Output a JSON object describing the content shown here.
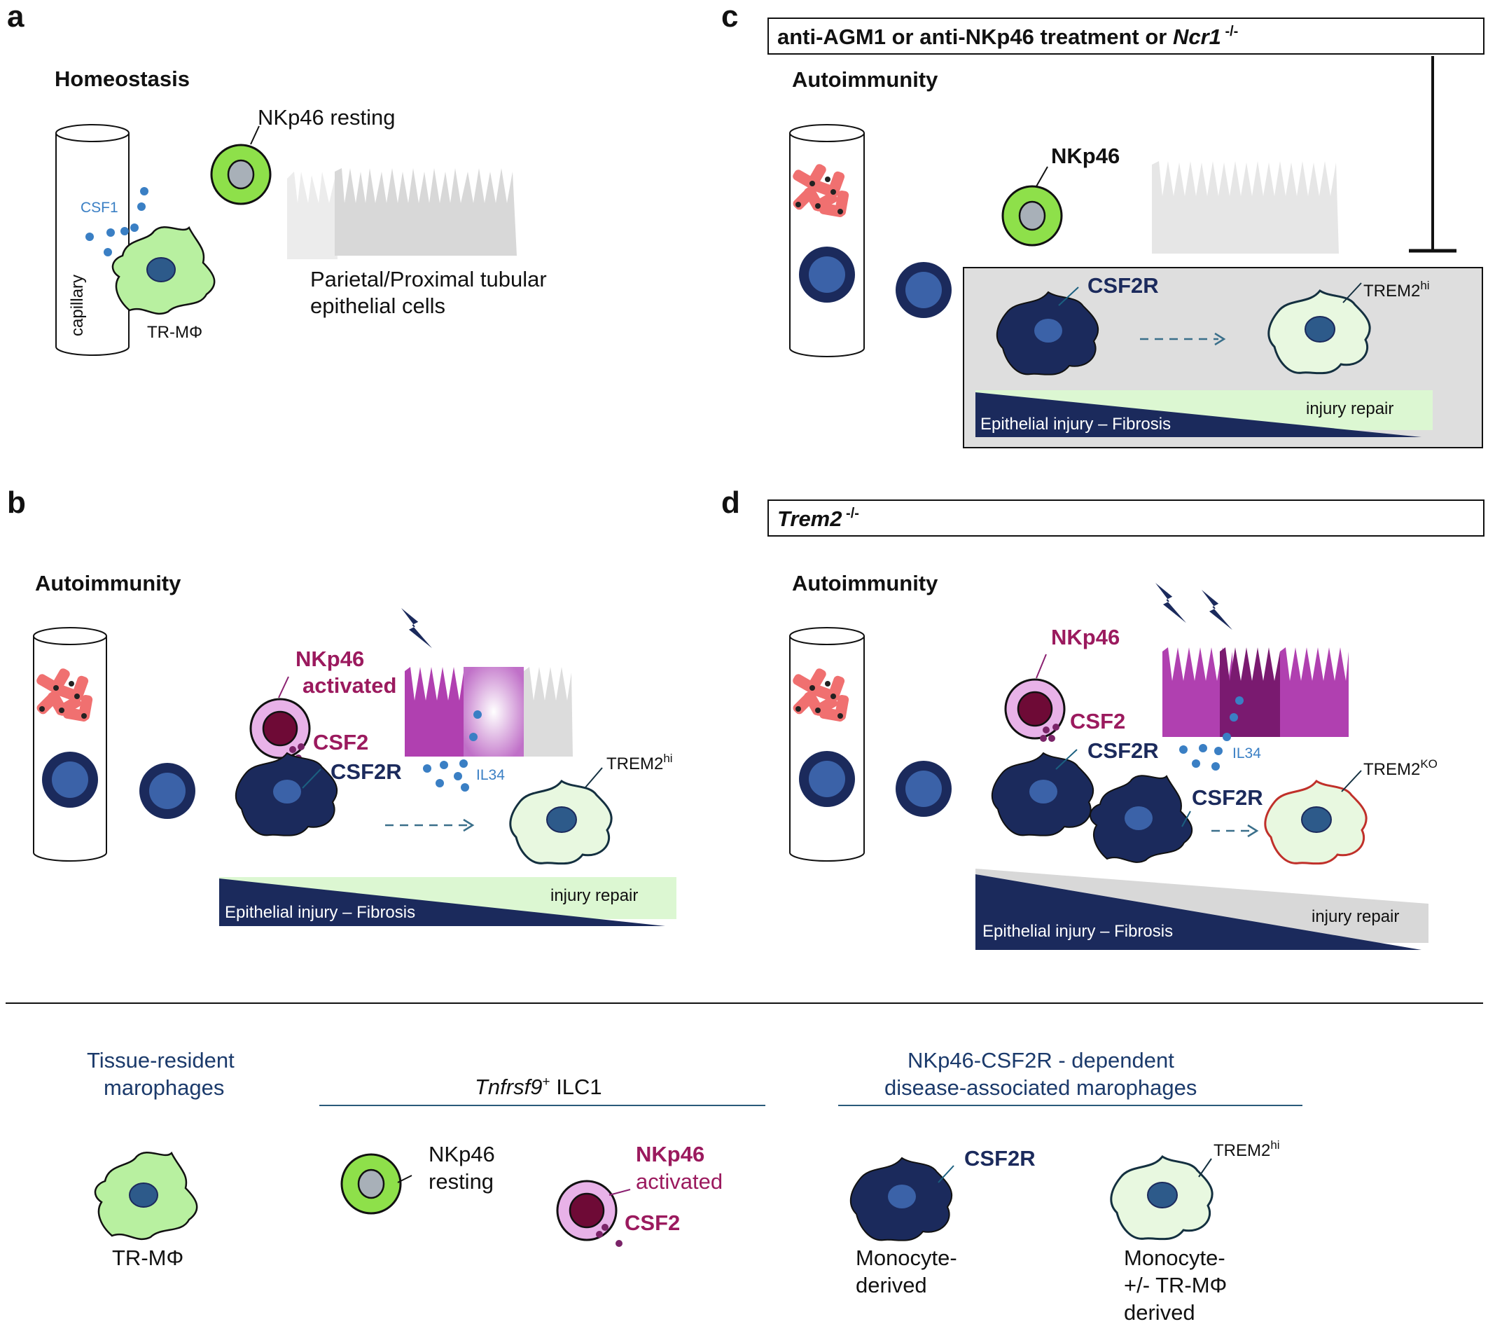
{
  "panels": {
    "a": {
      "letter": "a",
      "title": "Homeostasis",
      "capillary": "capillary",
      "csf1": "CSF1",
      "nk_resting": "NKp46 resting",
      "trm": "TR-MΦ",
      "epithelial_line1": "Parietal/Proximal tubular",
      "epithelial_line2": "epithelial cells"
    },
    "b": {
      "letter": "b",
      "title": "Autoimmunity",
      "nk_line1": "NKp46",
      "nk_line2": "activated",
      "csf2": "CSF2",
      "csf2r": "CSF2R",
      "il34": "IL34",
      "trem2": "TREM2",
      "trem2_sup": "hi",
      "gradient_left": "Epithelial injury – Fibrosis",
      "gradient_right": "injury repair"
    },
    "c": {
      "letter": "c",
      "box_part1": "anti-AGM1 or  anti-NKp46 treatment or ",
      "box_gene": "Ncr1",
      "box_sup": " -/-",
      "title": "Autoimmunity",
      "nk": "NKp46",
      "csf2r": "CSF2R",
      "trem2": "TREM2",
      "trem2_sup": "hi",
      "gradient_left": "Epithelial injury – Fibrosis",
      "gradient_right": "injury repair"
    },
    "d": {
      "letter": "d",
      "box_gene": "Trem2",
      "box_sup": " -/-",
      "title": "Autoimmunity",
      "nk": "NKp46",
      "csf2": "CSF2",
      "csf2r_1": "CSF2R",
      "csf2r_2": "CSF2R",
      "il34": "IL34",
      "trem2": "TREM2",
      "trem2_sup": "KO",
      "gradient_left": "Epithelial injury – Fibrosis",
      "gradient_right": "injury repair"
    }
  },
  "legend": {
    "group1_line1": "Tissue-resident",
    "group1_line2": "marophages",
    "group1_cell": "TR-MΦ",
    "group2_gene": "Tnfrsf9",
    "group2_sup": "+",
    "group2_rest": " ILC1",
    "nk_resting_line1": "NKp46",
    "nk_resting_line2": "resting",
    "nk_act_line1": "NKp46",
    "nk_act_line2": "activated",
    "csf2": "CSF2",
    "group3_line1": "NKp46-CSF2R - dependent",
    "group3_line2": "disease-associated marophages",
    "csf2r": "CSF2R",
    "trem2": "TREM2",
    "trem2_sup": "hi",
    "mono_line1": "Monocyte-",
    "mono_line2": "derived",
    "trem_line1": "Monocyte-",
    "trem_line2": "+/- TR-MΦ",
    "trem_line3": "derived"
  },
  "colors": {
    "navy": "#1b2a5c",
    "trm_green": "#b8f0a0",
    "nk_green": "#8ee04a",
    "light_green": "#e8f8e0",
    "magenta": "#b040b0",
    "dark_magenta": "#9b1a5e",
    "cytokine_blue": "#3a7fc4",
    "platelet_red": "#f07070",
    "panel_grey": "#dedede",
    "trem_ko_red": "#c0302a"
  }
}
